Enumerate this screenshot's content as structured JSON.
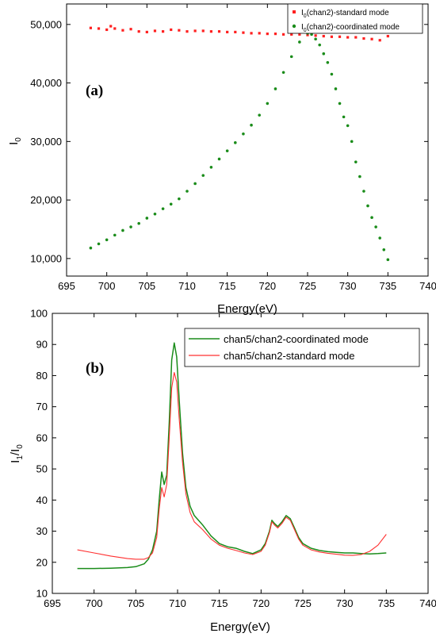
{
  "chart_data": [
    {
      "type": "scatter",
      "panel_label": "(a)",
      "xlabel": "Energy(eV)",
      "ylabel": "I",
      "ylabel_sub": "0",
      "xlim": [
        695,
        740
      ],
      "ylim": [
        7000,
        53500
      ],
      "xticks": [
        695,
        700,
        705,
        710,
        715,
        720,
        725,
        730,
        735,
        740
      ],
      "yticks": [
        10000,
        20000,
        30000,
        40000,
        50000
      ],
      "ytick_labels": [
        "10,000",
        "20,000",
        "30,000",
        "40,000",
        "50,000"
      ],
      "legend_position": "top-right",
      "series": [
        {
          "name_main": "I",
          "name_sub": "0",
          "name_rest": "(chan2)-standard mode",
          "color": "#ff2020",
          "marker": "square",
          "x": [
            698,
            699,
            700,
            700.5,
            701,
            702,
            703,
            704,
            705,
            706,
            707,
            708,
            709,
            710,
            711,
            712,
            713,
            714,
            715,
            716,
            717,
            718,
            719,
            720,
            721,
            722,
            723,
            724,
            725,
            726,
            727,
            728,
            729,
            730,
            731,
            732,
            733,
            734,
            735
          ],
          "y": [
            49400,
            49300,
            49100,
            49700,
            49300,
            49000,
            49200,
            48800,
            48700,
            48900,
            48800,
            49100,
            49000,
            48800,
            48900,
            48900,
            48800,
            48800,
            48700,
            48700,
            48600,
            48500,
            48500,
            48400,
            48400,
            48300,
            48300,
            48300,
            48200,
            48100,
            48000,
            47900,
            47900,
            47800,
            47800,
            47600,
            47500,
            47300,
            48000
          ]
        },
        {
          "name_main": "I",
          "name_sub": "0",
          "name_rest": "(chan2)-coordinated mode",
          "color": "#1a8c1a",
          "marker": "circle",
          "x": [
            698,
            699,
            700,
            701,
            702,
            703,
            704,
            705,
            706,
            707,
            708,
            709,
            710,
            711,
            712,
            713,
            714,
            715,
            716,
            717,
            718,
            719,
            720,
            721,
            722,
            723,
            724,
            725,
            725.5,
            726,
            726.5,
            727,
            727.5,
            728,
            728.5,
            729,
            729.5,
            730,
            730.5,
            731,
            731.5,
            732,
            732.5,
            733,
            733.5,
            734,
            734.5,
            735
          ],
          "y": [
            11800,
            12500,
            13200,
            14000,
            14800,
            15400,
            16000,
            16900,
            17600,
            18500,
            19300,
            20200,
            21500,
            22800,
            24200,
            25600,
            27000,
            28400,
            29800,
            31300,
            32800,
            34500,
            36500,
            39000,
            41800,
            44500,
            47000,
            48500,
            48300,
            47500,
            46500,
            45000,
            43500,
            41500,
            39000,
            36500,
            34200,
            32700,
            30000,
            26500,
            24000,
            21500,
            19000,
            17000,
            15400,
            13500,
            11500,
            9800
          ]
        }
      ]
    },
    {
      "type": "line",
      "panel_label": "(b)",
      "xlabel": "Energy(eV)",
      "ylabel_main": "I",
      "ylabel_sub1": "1",
      "ylabel_mid": "/I",
      "ylabel_sub2": "0",
      "xlim": [
        695,
        740
      ],
      "ylim": [
        10,
        100
      ],
      "xticks": [
        695,
        700,
        705,
        710,
        715,
        720,
        725,
        730,
        735,
        740
      ],
      "yticks": [
        10,
        20,
        30,
        40,
        50,
        60,
        70,
        80,
        90,
        100
      ],
      "legend_position": "top-right",
      "series": [
        {
          "name": "chan5/chan2-coordinated mode",
          "color": "#1a8c1a",
          "x": [
            698,
            700,
            702,
            704,
            705,
            706,
            706.5,
            707,
            707.5,
            707.8,
            708.1,
            708.4,
            708.7,
            709,
            709.3,
            709.6,
            709.9,
            710.2,
            710.6,
            711,
            711.5,
            712,
            713,
            714,
            715,
            716,
            717,
            718,
            719,
            720,
            720.5,
            721,
            721.3,
            721.6,
            722,
            722.5,
            723,
            723.5,
            724,
            724.5,
            725,
            726,
            727,
            728,
            729,
            730,
            731,
            732,
            733,
            734,
            735
          ],
          "y": [
            18,
            18,
            18.1,
            18.3,
            18.6,
            19.5,
            21,
            24,
            30,
            40,
            49,
            45,
            48,
            65,
            85,
            90.5,
            86,
            72,
            55,
            44,
            38,
            35,
            32,
            28.5,
            26,
            25,
            24.5,
            23.5,
            22.8,
            24,
            26,
            30,
            33.5,
            32.5,
            31.5,
            33,
            35,
            34,
            31,
            28,
            26,
            24.5,
            23.8,
            23.4,
            23.2,
            23,
            23,
            22.8,
            22.7,
            22.8,
            23
          ]
        },
        {
          "name": "chan5/chan2-standard mode",
          "color": "#ff3030",
          "x": [
            698,
            700,
            702,
            704,
            705,
            706,
            706.5,
            707,
            707.5,
            707.8,
            708.1,
            708.4,
            708.7,
            709,
            709.3,
            709.6,
            709.9,
            710.2,
            710.6,
            711,
            711.5,
            712,
            713,
            714,
            715,
            716,
            717,
            718,
            719,
            720,
            720.5,
            721,
            721.3,
            721.6,
            722,
            722.5,
            723,
            723.5,
            724,
            724.5,
            725,
            726,
            727,
            728,
            729,
            730,
            731,
            732,
            733,
            734,
            735
          ],
          "y": [
            24,
            23,
            22,
            21.2,
            21,
            21,
            21.5,
            23,
            28,
            37,
            44,
            41,
            45,
            60,
            76,
            81,
            78,
            66,
            52,
            42,
            36,
            33,
            30.5,
            27.5,
            25.5,
            24.5,
            23.8,
            23,
            22.5,
            23.5,
            25.5,
            29.5,
            33,
            32,
            31,
            32.5,
            34.5,
            33.5,
            30.5,
            27.5,
            25.5,
            24,
            23.3,
            22.9,
            22.6,
            22.3,
            22.2,
            22.5,
            23.5,
            25.5,
            29
          ]
        }
      ]
    }
  ]
}
